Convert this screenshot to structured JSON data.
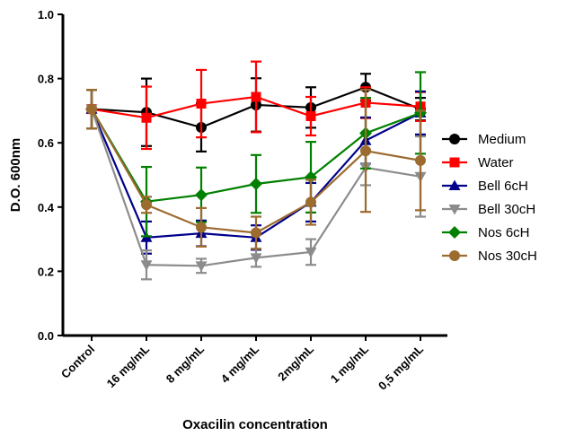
{
  "chart_data": {
    "type": "line",
    "xlabel": "Oxacilin concentration",
    "ylabel": "D.O. 600nm",
    "ylim": [
      0.0,
      1.0
    ],
    "yticks": [
      "0.0",
      "0.2",
      "0.4",
      "0.6",
      "0.8",
      "1.0"
    ],
    "categories": [
      "Control",
      "16 mg/mL",
      "8 mg/mL",
      "4 mg/mL",
      "2mg/mL",
      "1 mg/mL",
      "0,5 mg/mL"
    ],
    "legend_position": "right",
    "error_bars": true,
    "series": [
      {
        "name": "Medium",
        "color": "#000000",
        "marker": "circle",
        "values": [
          0.705,
          0.695,
          0.648,
          0.718,
          0.71,
          0.773,
          0.705
        ],
        "errors": [
          0.06,
          0.105,
          0.075,
          0.083,
          0.063,
          0.042,
          0.035
        ]
      },
      {
        "name": "Water",
        "color": "#ff0000",
        "marker": "square",
        "values": [
          0.705,
          0.678,
          0.722,
          0.743,
          0.683,
          0.725,
          0.713
        ],
        "errors": [
          0.06,
          0.097,
          0.105,
          0.11,
          0.06,
          0.048,
          0.045
        ]
      },
      {
        "name": "Bell 6cH",
        "color": "#00008b",
        "marker": "triangle-up",
        "values": [
          0.705,
          0.305,
          0.318,
          0.305,
          0.415,
          0.607,
          0.693
        ],
        "errors": [
          0.06,
          0.05,
          0.04,
          0.038,
          0.06,
          0.072,
          0.067
        ]
      },
      {
        "name": "Bell 30cH",
        "color": "#8c8c8c",
        "marker": "triangle-down",
        "values": [
          0.705,
          0.22,
          0.217,
          0.242,
          0.26,
          0.523,
          0.495
        ],
        "errors": [
          0.06,
          0.045,
          0.022,
          0.028,
          0.04,
          0.055,
          0.125
        ]
      },
      {
        "name": "Nos 6cH",
        "color": "#008000",
        "marker": "diamond",
        "values": [
          0.705,
          0.417,
          0.438,
          0.472,
          0.493,
          0.63,
          0.693
        ],
        "errors": [
          0.06,
          0.108,
          0.085,
          0.09,
          0.11,
          0.11,
          0.127
        ]
      },
      {
        "name": "Nos 30cH",
        "color": "#9c6b2f",
        "marker": "circle",
        "values": [
          0.705,
          0.407,
          0.337,
          0.32,
          0.415,
          0.575,
          0.545
        ],
        "errors": [
          0.06,
          0.025,
          0.06,
          0.05,
          0.07,
          0.19,
          0.155
        ]
      }
    ]
  }
}
